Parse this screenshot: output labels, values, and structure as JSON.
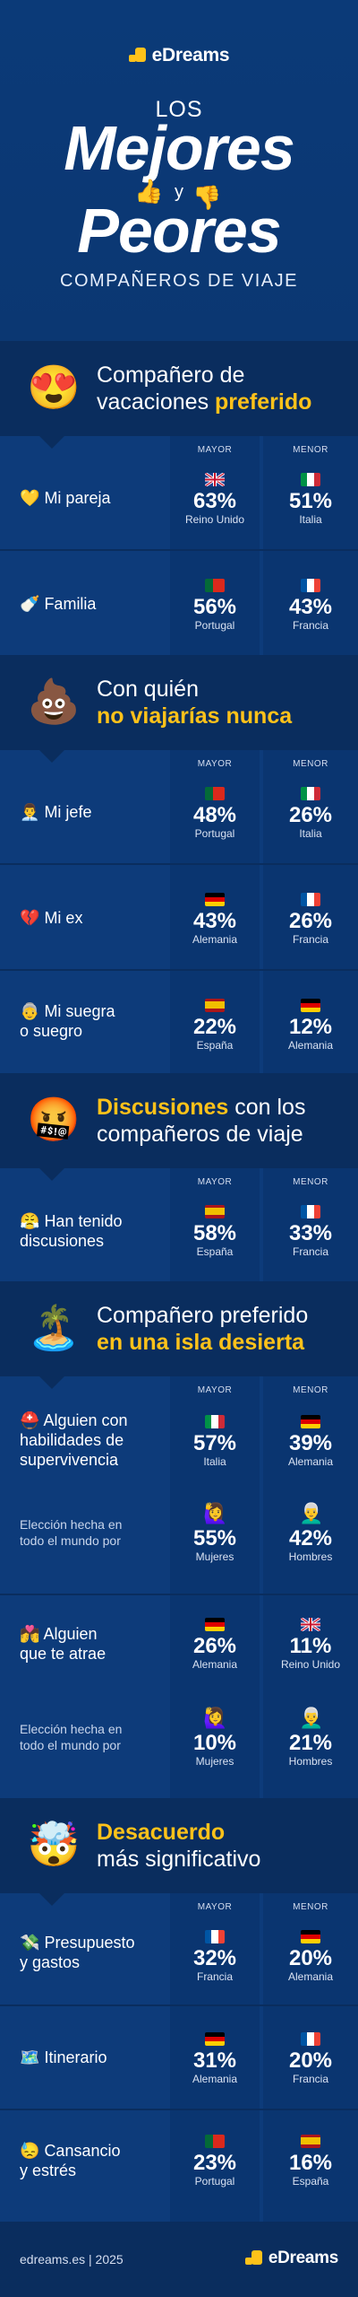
{
  "header": {
    "brand": "eDreams",
    "los": "LOS",
    "mejores": "Mejores",
    "y": "y",
    "peores": "Peores",
    "subtitle": "COMPAÑEROS DE VIAJE"
  },
  "labels": {
    "mayor": "MAYOR",
    "menor": "MENOR"
  },
  "sections": [
    {
      "emoji": "😍",
      "title_a": "Compañero de",
      "title_b": "vacaciones ",
      "title_c": "preferido",
      "rows": [
        {
          "icon": "💛",
          "label": "Mi pareja",
          "mayor_pct": "63%",
          "mayor_country": "Reino Unido",
          "mayor_flag": "uk",
          "menor_pct": "51%",
          "menor_country": "Italia",
          "menor_flag": "it"
        },
        {
          "icon": "🍼",
          "label": "Familia",
          "mayor_pct": "56%",
          "mayor_country": "Portugal",
          "mayor_flag": "pt",
          "menor_pct": "43%",
          "menor_country": "Francia",
          "menor_flag": "fr"
        }
      ]
    },
    {
      "emoji": "💩",
      "title_a": "Con quién",
      "title_b": "no viajarías nunca",
      "rows": [
        {
          "icon": "👨‍💼",
          "label": "Mi jefe",
          "mayor_pct": "48%",
          "mayor_country": "Portugal",
          "mayor_flag": "pt",
          "menor_pct": "26%",
          "menor_country": "Italia",
          "menor_flag": "it"
        },
        {
          "icon": "💔",
          "label": "Mi ex",
          "mayor_pct": "43%",
          "mayor_country": "Alemania",
          "mayor_flag": "de",
          "menor_pct": "26%",
          "menor_country": "Francia",
          "menor_flag": "fr"
        },
        {
          "icon": "👵",
          "label_a": "Mi suegra",
          "label_b": "o suegro",
          "mayor_pct": "22%",
          "mayor_country": "España",
          "mayor_flag": "es",
          "menor_pct": "12%",
          "menor_country": "Alemania",
          "menor_flag": "de"
        }
      ]
    },
    {
      "emoji": "🤬",
      "title_a": "Discusiones",
      "title_a2": " con los",
      "title_b": "compañeros de viaje",
      "rows": [
        {
          "icon": "😤",
          "label_a": "Han tenido",
          "label_b": "discusiones",
          "mayor_pct": "58%",
          "mayor_country": "España",
          "mayor_flag": "es",
          "menor_pct": "33%",
          "menor_country": "Francia",
          "menor_flag": "fr"
        }
      ]
    },
    {
      "emoji": "🏝️",
      "title_a": "Compañero preferido",
      "title_b": "en una isla desierta",
      "rows": [
        {
          "icon": "⛑️",
          "label_a": "Alguien con",
          "label_b": "habilidades de",
          "label_c": "supervivencia",
          "mayor_pct": "57%",
          "mayor_country": "Italia",
          "mayor_flag": "it",
          "menor_pct": "39%",
          "menor_country": "Alemania",
          "menor_flag": "de",
          "note_a": "Elección hecha en",
          "note_b": "todo el mundo por",
          "w_pct": "55%",
          "w_label": "Mujeres",
          "m_pct": "42%",
          "m_label": "Hombres"
        },
        {
          "icon": "💏",
          "label_a": "Alguien",
          "label_b": "que te atrae",
          "mayor_pct": "26%",
          "mayor_country": "Alemania",
          "mayor_flag": "de",
          "menor_pct": "11%",
          "menor_country": "Reino Unido",
          "menor_flag": "uk",
          "note_a": "Elección hecha en",
          "note_b": "todo el mundo por",
          "w_pct": "10%",
          "w_label": "Mujeres",
          "m_pct": "21%",
          "m_label": "Hombres"
        }
      ]
    },
    {
      "emoji": "🤯",
      "title_a": "Desacuerdo",
      "title_b": "más significativo",
      "rows": [
        {
          "icon": "💸",
          "label_a": "Presupuesto",
          "label_b": "y gastos",
          "mayor_pct": "32%",
          "mayor_country": "Francia",
          "mayor_flag": "fr",
          "menor_pct": "20%",
          "menor_country": "Alemania",
          "menor_flag": "de"
        },
        {
          "icon": "🗺️",
          "label": "Itinerario",
          "mayor_pct": "31%",
          "mayor_country": "Alemania",
          "mayor_flag": "de",
          "menor_pct": "20%",
          "menor_country": "Francia",
          "menor_flag": "fr"
        },
        {
          "icon": "😓",
          "label_a": "Cansancio",
          "label_b": "y estrés",
          "mayor_pct": "23%",
          "mayor_country": "Portugal",
          "mayor_flag": "pt",
          "menor_pct": "16%",
          "menor_country": "España",
          "menor_flag": "es"
        }
      ]
    }
  ],
  "footer": {
    "site": "edreams.es | 2025",
    "brand": "eDreams"
  },
  "colors": {
    "bg": "#0c3a78",
    "dark": "#0a2d5e",
    "accent": "#ffc21a"
  },
  "flags": {
    "uk": "flag-uk-icon",
    "it": "flag-italy-icon",
    "pt": "flag-portugal-icon",
    "fr": "flag-france-icon",
    "de": "flag-germany-icon",
    "es": "flag-spain-icon"
  }
}
